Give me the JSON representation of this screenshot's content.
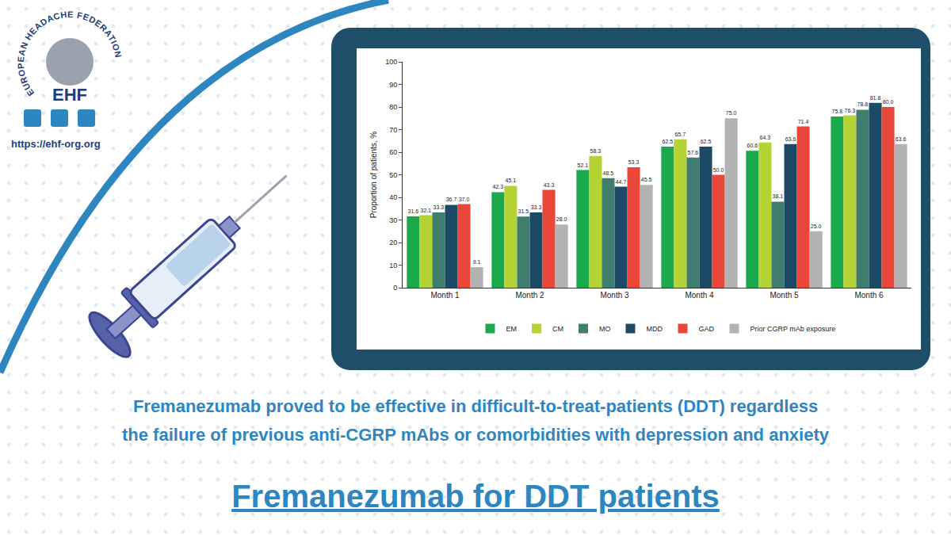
{
  "header": {
    "org_name": "EUROPEAN HEADACHE FEDERATION",
    "acronym": "EHF",
    "url": "https://ehf-org.org"
  },
  "chart_data": {
    "type": "bar",
    "categories": [
      "Month 1",
      "Month 2",
      "Month 3",
      "Month 4",
      "Month 5",
      "Month 6"
    ],
    "y_label": "Proportion of patients, %",
    "ylim": [
      0,
      100
    ],
    "yticks": [
      0,
      10,
      20,
      30,
      40,
      50,
      60,
      70,
      80,
      90,
      100
    ],
    "grid": false,
    "data_labels": true,
    "legend": "bottom",
    "series": [
      {
        "name": "EM",
        "color": "#1aaa4b",
        "values": [
          31.6,
          42.3,
          52.1,
          62.5,
          60.6,
          75.8
        ],
        "value_labels": [
          "31.6",
          "42.3",
          "52.1",
          "62.5",
          "60.6",
          "75.8"
        ]
      },
      {
        "name": "CM",
        "color": "#b5d334",
        "values": [
          32.1,
          45.1,
          58.3,
          65.7,
          64.3,
          76.3
        ],
        "value_labels": [
          "32.1",
          "45.1",
          "58.3",
          "65.7",
          "64.3",
          "76.3"
        ]
      },
      {
        "name": "MO",
        "color": "#3f7d6e",
        "values": [
          33.3,
          31.5,
          48.5,
          57.6,
          38.1,
          78.8
        ],
        "value_labels": [
          "33.3",
          "31.5",
          "48.5",
          "57.6",
          "38.1",
          "78.8"
        ]
      },
      {
        "name": "MDD",
        "color": "#1c4a66",
        "values": [
          36.7,
          33.3,
          44.7,
          62.5,
          63.6,
          81.8
        ],
        "value_labels": [
          "36.7",
          "33.3",
          "44.7",
          "62.5",
          "63.6",
          "81.8"
        ]
      },
      {
        "name": "GAD",
        "color": "#e8473a",
        "values": [
          37.0,
          43.3,
          53.3,
          50.0,
          71.4,
          80.0
        ],
        "value_labels": [
          "37.0",
          "43.3",
          "53.3",
          "50.0",
          "71.4",
          "80.0"
        ]
      },
      {
        "name": "Prior CGRP mAb exposure",
        "color": "#b3b3b3",
        "values": [
          9.1,
          28.0,
          45.5,
          75.0,
          25.0,
          63.6
        ],
        "value_labels": [
          "9.1",
          "28.0",
          "45.5",
          "75.0",
          "25.0",
          "63.6"
        ]
      }
    ]
  },
  "caption": {
    "lines": [
      "Fremanezumab proved to be effective in difficult-to-treat-patients (DDT) regardless",
      "the failure of previous anti-CGRP mAbs or comorbidities with depression and anxiety"
    ]
  },
  "footer_title": "Fremanezumab for DDT patients"
}
